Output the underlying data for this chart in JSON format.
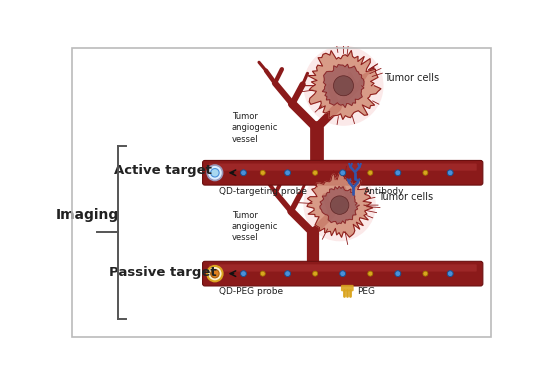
{
  "bg_color": "#ffffff",
  "border_color": "#bbbbbb",
  "vessel_color": "#8B1A1A",
  "vessel_dark": "#6B0F0F",
  "vessel_highlight": "#C04040",
  "tumor_outer_color": "#D4907A",
  "tumor_inner_color": "#A06060",
  "tumor_nucleus_color": "#7A4A4A",
  "dot_blue": "#4A90D9",
  "dot_cyan": "#A8D8F0",
  "dot_orange": "#DAA520",
  "text_color": "#222222",
  "bracket_color": "#555555",
  "antibody_color": "#3355AA",
  "peg_color": "#DAA520",
  "imaging_label": "Imaging",
  "active_label": "Active target",
  "passive_label": "Passive target",
  "vessel_label": "Tumor\nangiogenic\nvessel",
  "tumor_cells_label": "Tumor cells",
  "qd_label": "QD-targeting probe",
  "antibody_label": "Antibody",
  "qd_peg_label": "QD-PEG probe",
  "peg_label": "PEG",
  "figsize": [
    5.5,
    3.81
  ],
  "dpi": 100
}
